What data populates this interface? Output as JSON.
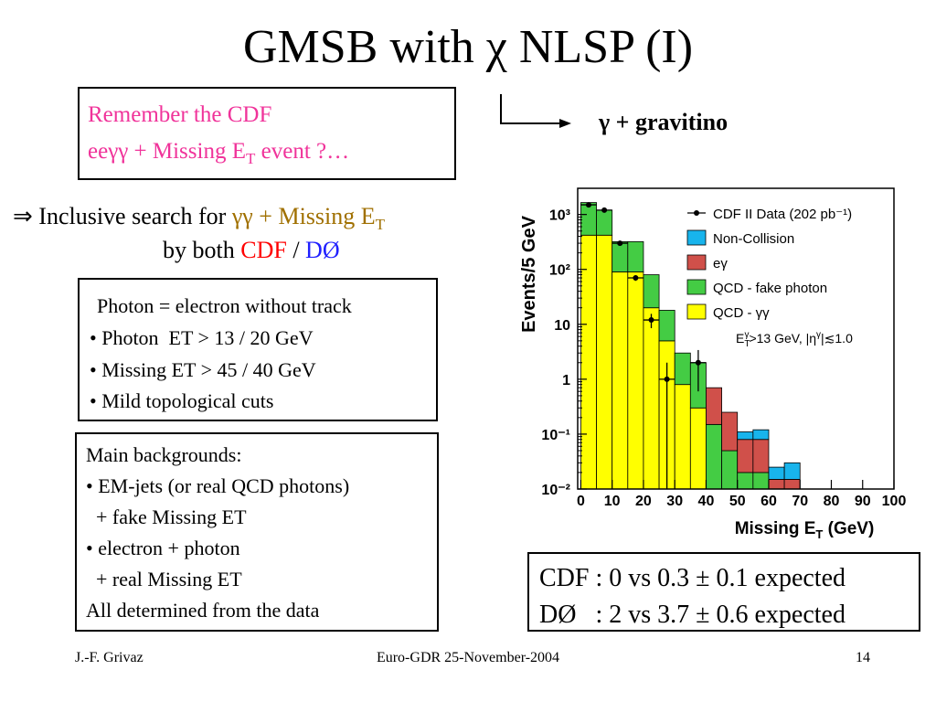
{
  "slide": {
    "title": "GMSB with χ NLSP (I)",
    "box1": {
      "line1": "Remember the CDF",
      "line2": [
        "eeγγ + Missing E",
        "T",
        " event ?…"
      ]
    },
    "arrow_label": "γ + gravitino",
    "search": {
      "line1": [
        "⇒ Inclusive search for ",
        "γγ + Missing E",
        "T"
      ],
      "line2": [
        "by both ",
        "CDF",
        " / ",
        "DØ"
      ]
    },
    "cuts": [
      "Photon = electron without track",
      "• Photon  ET > 13 / 20 GeV",
      "• Missing ET > 45 / 40 GeV",
      "• Mild topological cuts"
    ],
    "backgrounds": [
      "Main backgrounds:",
      "• EM-jets (or real QCD photons)",
      "  + fake Missing ET",
      "• electron + photon",
      "  + real Missing ET",
      "All determined from the data"
    ],
    "results": [
      "CDF : 0 vs 0.3 ± 0.1 expected",
      "DØ   : 2 vs 3.7 ± 0.6 expected"
    ],
    "footer": {
      "left": "J.-F. Grivaz",
      "center": "Euro-GDR 25-November-2004",
      "right": "14"
    }
  },
  "chart_data": {
    "type": "histogram",
    "ylabel": "Events/5 GeV",
    "xlabel": [
      "Missing E",
      "T",
      " (GeV)"
    ],
    "annotation": [
      "E",
      "T",
      "γ",
      ">13 GeV, |η",
      "γ",
      "|≲1.0"
    ],
    "log_y": true,
    "bins": [
      0,
      5,
      10,
      15,
      20,
      25,
      30,
      35,
      40,
      45,
      50,
      55,
      60,
      65,
      70
    ],
    "series": [
      {
        "name": "QCD - γγ",
        "color": "#ffff00",
        "values": [
          420,
          420,
          90,
          90,
          20,
          5,
          0.8,
          0.3,
          0,
          0,
          0,
          0,
          0,
          0
        ]
      },
      {
        "name": "QCD - fake photon",
        "color": "#44cc44",
        "values": [
          1230,
          780,
          230,
          230,
          60,
          13,
          2.2,
          1.7,
          0.15,
          0.05,
          0.02,
          0.02,
          0,
          0
        ]
      },
      {
        "name": "eγ",
        "color": "#d0504a",
        "values": [
          0,
          0,
          0,
          0,
          0,
          0,
          0,
          0,
          0.55,
          0.2,
          0.06,
          0.06,
          0.015,
          0.015
        ]
      },
      {
        "name": "Non-Collision",
        "color": "#18b4ec",
        "values": [
          0,
          0,
          0,
          0,
          0,
          0,
          0,
          0,
          0,
          0,
          0.03,
          0.04,
          0.01,
          0.015
        ]
      }
    ],
    "points": {
      "name": "CDF II Data (202 pb⁻¹)",
      "color": "#000000",
      "x": [
        2.5,
        7.5,
        12.5,
        17.5,
        22.5,
        27.5,
        37.5
      ],
      "values": [
        1500,
        1200,
        300,
        70,
        12,
        1,
        2
      ],
      "errors": [
        40,
        35,
        17,
        8,
        3.5,
        1,
        1.4
      ],
      "xerr": 2.5
    },
    "xlim": [
      -1,
      100
    ],
    "xticks": [
      0,
      10,
      20,
      30,
      40,
      50,
      60,
      70,
      80,
      90,
      100
    ],
    "ylim": [
      0.01,
      3000
    ],
    "yticks": [
      {
        "value": 0.01,
        "label": "10⁻²"
      },
      {
        "value": 0.1,
        "label": "10⁻¹"
      },
      1,
      10,
      {
        "value": 100,
        "label": "10²"
      },
      {
        "value": 1000,
        "label": "10³"
      }
    ]
  }
}
